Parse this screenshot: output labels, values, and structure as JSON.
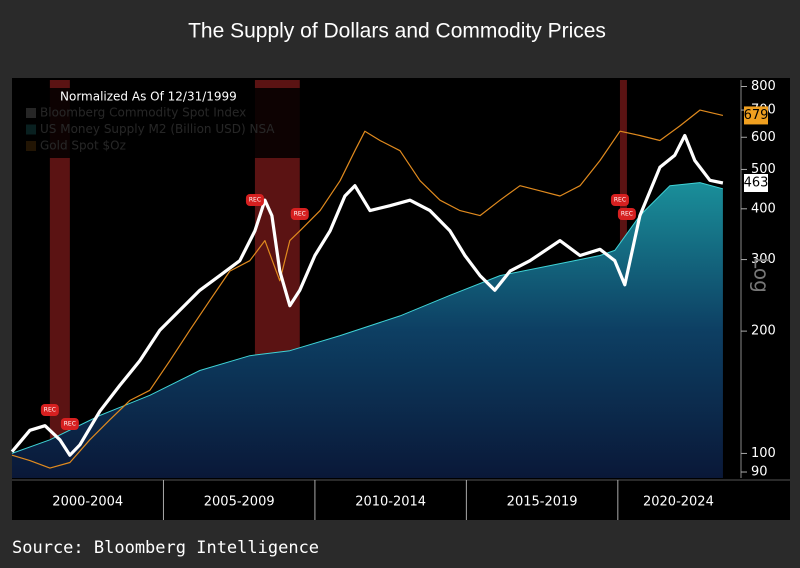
{
  "chart_data": {
    "type": "line",
    "title": "The Supply of Dollars and Commodity Prices",
    "subtitle": "Normalized As Of 12/31/1999",
    "y_label": "Log",
    "source": "Source: Bloomberg Intelligence",
    "log_scale": true,
    "grid": false,
    "xlim": [
      2000,
      2024
    ],
    "xticks": [
      2005,
      2010,
      2015,
      2020
    ],
    "x_period_labels": [
      "2000-2004",
      "2005-2009",
      "2010-2014",
      "2015-2019",
      "2020-2024"
    ],
    "ylim": [
      87,
      830
    ],
    "yticks": [
      90,
      100,
      200,
      300,
      400,
      500,
      600,
      700,
      800
    ],
    "recession_label": "REC",
    "recessions": [
      [
        2001.25,
        2001.91
      ],
      [
        2008.02,
        2009.5
      ],
      [
        2020.07,
        2020.3
      ]
    ],
    "series": [
      {
        "name": "Bloomberg Commodity Spot Index",
        "color": "#ffffff",
        "x": [
          2000.0,
          2000.59,
          2001.09,
          2001.58,
          2001.91,
          2002.24,
          2002.9,
          2003.56,
          2004.22,
          2004.88,
          2005.54,
          2006.2,
          2006.86,
          2007.52,
          2008.02,
          2008.35,
          2008.58,
          2008.84,
          2009.17,
          2009.5,
          2010.0,
          2010.5,
          2010.99,
          2011.32,
          2011.82,
          2012.48,
          2013.14,
          2013.8,
          2014.46,
          2014.95,
          2015.45,
          2015.94,
          2016.44,
          2017.1,
          2018.09,
          2018.75,
          2019.41,
          2019.9,
          2020.23,
          2020.73,
          2021.39,
          2021.88,
          2022.21,
          2022.54,
          2023.04,
          2023.47
        ],
        "values": [
          101,
          114,
          117,
          108,
          99,
          105,
          127,
          147,
          169,
          201,
          225,
          252,
          274,
          298,
          353,
          420,
          385,
          281,
          231,
          252,
          307,
          353,
          430,
          456,
          396,
          407,
          420,
          396,
          353,
          307,
          274,
          252,
          281,
          298,
          334,
          307,
          318,
          298,
          260,
          385,
          506,
          542,
          606,
          526,
          470,
          463
        ]
      },
      {
        "name": "US Money Supply M2 (Billion USD) NSA",
        "color": "#3fd3d6",
        "x": [
          2000.0,
          2001.25,
          2002.9,
          2004.55,
          2006.2,
          2007.85,
          2009.17,
          2010.83,
          2012.81,
          2014.46,
          2016.11,
          2017.76,
          2019.41,
          2019.9,
          2020.73,
          2021.72,
          2022.71,
          2023.47
        ],
        "values": [
          100,
          108,
          124,
          139,
          160,
          174,
          179,
          195,
          218,
          245,
          274,
          290,
          307,
          316,
          385,
          456,
          464,
          448
        ]
      },
      {
        "name": "Gold Spot $Oz",
        "color": "#e08a1e",
        "x": [
          2000.0,
          2000.59,
          2001.25,
          2001.91,
          2002.57,
          2003.23,
          2003.89,
          2004.55,
          2005.21,
          2005.87,
          2006.53,
          2007.19,
          2007.85,
          2008.35,
          2008.84,
          2009.17,
          2009.5,
          2010.17,
          2010.83,
          2011.32,
          2011.65,
          2012.15,
          2012.81,
          2013.47,
          2014.13,
          2014.79,
          2015.45,
          2016.11,
          2016.77,
          2017.43,
          2018.09,
          2018.75,
          2019.41,
          2020.07,
          2020.73,
          2021.39,
          2022.05,
          2022.71,
          2023.47
        ],
        "values": [
          99,
          96,
          92,
          95,
          108,
          121,
          135,
          143,
          169,
          201,
          238,
          281,
          298,
          334,
          266,
          334,
          353,
          396,
          469,
          556,
          621,
          589,
          556,
          469,
          420,
          396,
          385,
          420,
          456,
          443,
          430,
          456,
          526,
          621,
          606,
          589,
          640,
          700,
          679
        ]
      }
    ]
  }
}
